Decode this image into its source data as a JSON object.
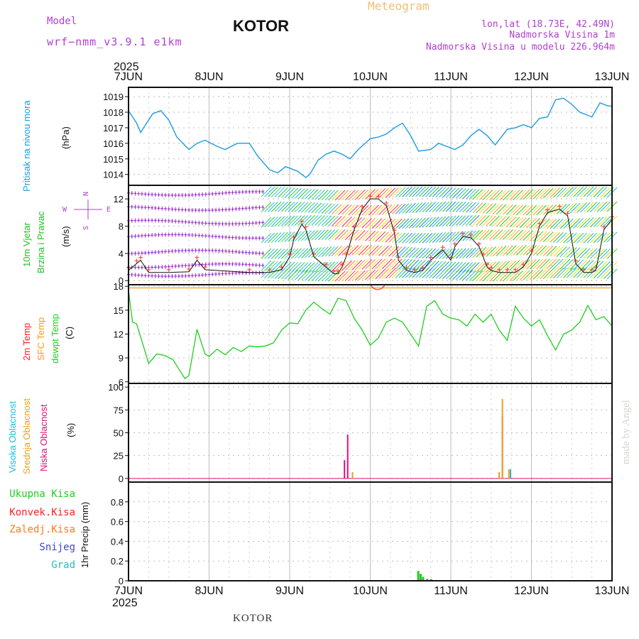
{
  "header": {
    "model_label": "Model",
    "model_name": "wrf−nmm_v3.9.1  e1km",
    "station": "KOTOR",
    "title": "Meteogram",
    "coords": "lon,lat (18.73E, 42.49N)",
    "elevation": "Nadmorska Visina 1m",
    "model_elevation": "Nadmorska Visina u modelu 226.964m",
    "watermark": "made by Angel",
    "footer_station": "KOTOR"
  },
  "time_axis": {
    "year": "2025",
    "ticks": [
      "7JUN",
      "8JUN",
      "9JUN",
      "10JUN",
      "11JUN",
      "12JUN",
      "13JUN"
    ]
  },
  "colors": {
    "pressure": "#1e9be0",
    "temp_2m": "#ff2020",
    "sfc_temp": "#ff9a1a",
    "dewpoint": "#22cc22",
    "high_cloud": "#20b8e0",
    "mid_cloud": "#e8a020",
    "low_cloud": "#e0107a",
    "wind_label": "#22c022",
    "axis_label_purple": "#b040d0"
  },
  "panels": {
    "pressure": {
      "ylabel": "Pritisak na nivou mora",
      "unit": "(hPa)",
      "yticks": [
        "1014",
        "1015",
        "1016",
        "1017",
        "1018",
        "1019"
      ]
    },
    "wind": {
      "ylabel1": "10m Vjetar",
      "ylabel2": "Brzina i Pravac",
      "unit": "(m/s)",
      "yticks": [
        "0",
        "4",
        "8",
        "12"
      ],
      "compass": [
        "N",
        "W",
        "E",
        "S"
      ]
    },
    "temp": {
      "labels": [
        "2m Temp",
        "SFC Temp",
        "dewpt Temp"
      ],
      "unit": "(C)",
      "yticks": [
        "6",
        "9",
        "12",
        "15",
        "18"
      ]
    },
    "cloud": {
      "labels": [
        "Visoka Oblacnost",
        "Srednja Oblacnost",
        "Niska Oblacnost"
      ],
      "unit": "(%)",
      "yticks": [
        "0",
        "25",
        "50",
        "75",
        "100"
      ]
    },
    "precip": {
      "legend": [
        "Ukupna Kisa",
        "Konvek.Kisa",
        "Zaledj.Kisa",
        "Snijeg",
        "Grad"
      ],
      "ylabel": "1hr Precip (mm)",
      "yticks": [
        "0",
        "0.2",
        "0.4",
        "0.6",
        "0.8"
      ]
    }
  },
  "chart_data": [
    {
      "type": "line",
      "title": "Pritisak na nivou mora",
      "ylabel": "(hPa)",
      "x_unit": "days since 7JUN 00Z",
      "ylim": [
        1013.3,
        1019.6
      ],
      "x": [
        0,
        0.1,
        0.15,
        0.3,
        0.4,
        0.5,
        0.6,
        0.75,
        0.85,
        0.95,
        1.1,
        1.2,
        1.35,
        1.5,
        1.6,
        1.75,
        1.85,
        1.95,
        2.1,
        2.2,
        2.25,
        2.35,
        2.45,
        2.55,
        2.65,
        2.75,
        2.85,
        3.0,
        3.1,
        3.2,
        3.3,
        3.4,
        3.5,
        3.6,
        3.75,
        3.85,
        3.95,
        4.05,
        4.15,
        4.25,
        4.35,
        4.45,
        4.55,
        4.7,
        4.8,
        4.9,
        5.0,
        5.1,
        5.2,
        5.3,
        5.4,
        5.5,
        5.6,
        5.75,
        5.85,
        5.95,
        6.0
      ],
      "values": [
        1018.1,
        1017.3,
        1016.7,
        1017.9,
        1018.1,
        1017.5,
        1016.4,
        1015.6,
        1016.0,
        1016.2,
        1015.8,
        1015.6,
        1016.0,
        1016.0,
        1015.2,
        1014.3,
        1014.1,
        1014.5,
        1014.2,
        1013.8,
        1014.0,
        1014.9,
        1015.3,
        1015.5,
        1015.3,
        1015.0,
        1015.6,
        1016.3,
        1016.4,
        1016.6,
        1017.0,
        1017.3,
        1016.5,
        1015.5,
        1015.6,
        1016.0,
        1015.8,
        1015.6,
        1015.9,
        1016.5,
        1016.9,
        1016.5,
        1015.9,
        1016.9,
        1017.0,
        1017.2,
        1017.0,
        1017.6,
        1017.7,
        1018.8,
        1018.9,
        1018.5,
        1018.0,
        1017.7,
        1018.6,
        1018.4,
        1018.4
      ]
    },
    {
      "type": "line",
      "title": "10m Vjetar Brzina i Pravac",
      "ylabel": "(m/s)",
      "x_unit": "days since 7JUN 00Z",
      "ylim": [
        -0.6,
        14.0
      ],
      "x": [
        0,
        0.1,
        0.15,
        0.25,
        0.5,
        0.75,
        0.85,
        0.95,
        1.5,
        1.75,
        1.9,
        2.0,
        2.05,
        2.15,
        2.2,
        2.3,
        2.45,
        2.55,
        2.6,
        2.65,
        2.7,
        2.8,
        2.9,
        3.0,
        3.1,
        3.2,
        3.3,
        3.35,
        3.45,
        3.55,
        3.65,
        3.75,
        3.9,
        4.0,
        4.05,
        4.15,
        4.25,
        4.35,
        4.4,
        4.45,
        4.5,
        4.6,
        4.7,
        4.8,
        4.9,
        5.0,
        5.1,
        5.2,
        5.35,
        5.45,
        5.55,
        5.65,
        5.75,
        5.8,
        5.9,
        6.0
      ],
      "series": [
        {
          "name": "",
          "values": [
            1.5,
            2.5,
            3.0,
            1.2,
            1.2,
            1.3,
            3.0,
            1.6,
            1.2,
            1.2,
            1.6,
            3.5,
            6.0,
            8.3,
            7.5,
            3.5,
            2.0,
            1.0,
            1.0,
            2.0,
            3.5,
            7.5,
            10.5,
            12.0,
            12.0,
            11.0,
            7.0,
            3.0,
            1.5,
            1.2,
            1.5,
            3.0,
            4.5,
            3.0,
            5.0,
            6.5,
            6.3,
            5.0,
            3.5,
            2.0,
            1.5,
            1.2,
            1.2,
            1.2,
            2.0,
            4.0,
            8.0,
            10.0,
            10.5,
            9.5,
            2.5,
            1.2,
            1.2,
            1.5,
            7.5,
            9.0
          ]
        }
      ]
    },
    {
      "type": "line",
      "title": "2m Temp / SFC Temp / dewpt Temp",
      "ylabel": "(C)",
      "x_unit": "days since 7JUN 00Z",
      "ylim": [
        5.8,
        18.2
      ],
      "x": [
        0,
        0.05,
        0.1,
        0.2,
        0.25,
        0.35,
        0.45,
        0.55,
        0.6,
        0.7,
        0.75,
        0.85,
        0.95,
        1.0,
        1.1,
        1.2,
        1.3,
        1.4,
        1.5,
        1.6,
        1.7,
        1.8,
        1.9,
        2.0,
        2.1,
        2.2,
        2.3,
        2.4,
        2.5,
        2.6,
        2.7,
        2.8,
        2.9,
        3.0,
        3.1,
        3.2,
        3.3,
        3.4,
        3.5,
        3.6,
        3.7,
        3.8,
        3.9,
        4.0,
        4.1,
        4.2,
        4.3,
        4.4,
        4.5,
        4.6,
        4.7,
        4.8,
        4.9,
        5.0,
        5.1,
        5.2,
        5.3,
        5.4,
        5.5,
        5.6,
        5.7,
        5.8,
        5.9,
        6.0
      ],
      "series": [
        {
          "name": "dewpt Temp",
          "values": [
            17.5,
            13.5,
            13.3,
            10.0,
            8.3,
            9.5,
            9.3,
            8.8,
            8.0,
            6.4,
            6.8,
            12.6,
            9.5,
            9.2,
            10.1,
            9.4,
            10.3,
            9.8,
            10.5,
            10.4,
            10.5,
            10.9,
            12.5,
            13.4,
            13.3,
            15.0,
            16.0,
            15.2,
            14.5,
            16.5,
            16.2,
            14.0,
            12.5,
            10.6,
            11.5,
            13.5,
            14.0,
            13.5,
            12.0,
            10.5,
            15.5,
            16.2,
            14.5,
            14.0,
            13.8,
            13.0,
            14.5,
            13.5,
            14.5,
            12.5,
            11.2,
            15.5,
            14.0,
            13.0,
            13.8,
            11.8,
            10.0,
            12.0,
            12.5,
            13.5,
            15.6,
            13.8,
            14.2,
            13.0
          ]
        },
        {
          "name": "SFC Temp",
          "values": [
            17.8,
            17.8,
            17.8,
            17.8,
            17.8,
            17.8,
            17.8,
            17.8,
            17.8,
            17.8,
            17.8,
            17.8,
            17.8,
            17.8,
            17.8,
            17.8,
            17.8,
            17.8,
            17.8,
            17.8,
            17.8,
            17.8,
            17.8,
            17.8,
            17.8,
            17.8,
            17.8,
            17.8,
            17.8,
            17.8,
            17.8,
            17.8,
            17.8,
            17.8,
            17.8,
            17.8,
            17.8,
            17.8,
            17.8,
            17.8,
            17.8,
            17.8,
            17.8,
            17.8,
            17.8,
            17.8,
            17.8,
            17.8,
            17.8,
            17.8,
            17.8,
            17.8,
            17.8,
            17.8,
            17.8,
            17.8,
            17.8,
            17.8,
            17.8,
            17.8,
            17.8,
            17.8,
            17.8,
            17.8
          ]
        }
      ]
    },
    {
      "type": "bar",
      "title": "Oblacnost",
      "ylabel": "(%)",
      "x_unit": "days since 7JUN 00Z",
      "ylim": [
        -4,
        104
      ],
      "series": [
        {
          "name": "Niska Oblacnost",
          "x": [
            2.68,
            2.72,
            4.64,
            4.67
          ],
          "values": [
            20,
            48,
            68,
            0
          ]
        },
        {
          "name": "Srednja Oblacnost",
          "x": [
            2.78,
            4.6,
            4.64,
            4.72
          ],
          "values": [
            7,
            7,
            87,
            10
          ]
        },
        {
          "name": "Visoka Oblacnost",
          "x": [
            4.74
          ],
          "values": [
            10
          ]
        }
      ]
    },
    {
      "type": "bar",
      "title": "1hr Precip",
      "ylabel": "1hr Precip (mm)",
      "x_unit": "days since 7JUN 00Z",
      "ylim": [
        0,
        1.0
      ],
      "series": [
        {
          "name": "Ukupna Kisa",
          "x": [
            3.6,
            3.63,
            3.66,
            3.71
          ],
          "values": [
            0.1,
            0.07,
            0.04,
            0.02
          ]
        },
        {
          "name": "Konvek.Kisa",
          "x": [
            3.76
          ],
          "values": [
            0.015
          ]
        }
      ]
    }
  ]
}
